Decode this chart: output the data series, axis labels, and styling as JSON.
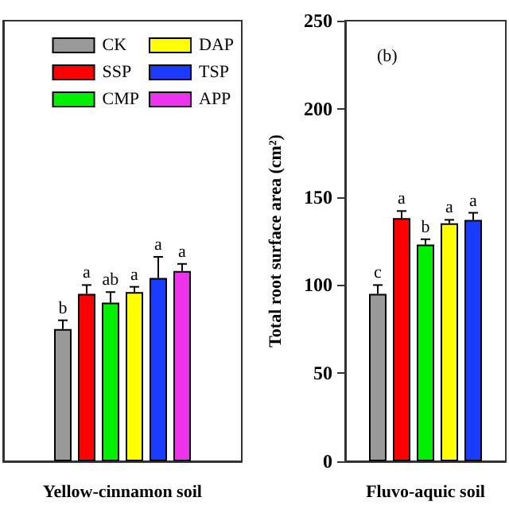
{
  "chart_data": [
    {
      "type": "bar",
      "xlabel": "Yellow-cinnamon soil",
      "categories": [
        null
      ],
      "ylim": [
        0,
        250
      ],
      "tick_labels": false,
      "legend": "top right",
      "grid": false,
      "series": [
        {
          "name": "CK",
          "color": "#999999",
          "values": [
            75
          ],
          "errors": [
            5
          ],
          "value_labels": [
            "b"
          ]
        },
        {
          "name": "SSP",
          "color": "#ff0000",
          "values": [
            95
          ],
          "errors": [
            5
          ],
          "value_labels": [
            "a"
          ]
        },
        {
          "name": "CMP",
          "color": "#00ee00",
          "values": [
            90
          ],
          "errors": [
            6
          ],
          "value_labels": [
            "ab"
          ]
        },
        {
          "name": "DAP",
          "color": "#ffff00",
          "values": [
            96
          ],
          "errors": [
            3
          ],
          "value_labels": [
            "a"
          ]
        },
        {
          "name": "TSP",
          "color": "#1a3cff",
          "values": [
            104
          ],
          "errors": [
            12
          ],
          "value_labels": [
            "a"
          ]
        },
        {
          "name": "APP",
          "color": "#ee33ee",
          "values": [
            108
          ],
          "errors": [
            4
          ],
          "value_labels": [
            "a"
          ]
        }
      ]
    },
    {
      "type": "bar",
      "xlabel": "Fluvo-aquic soil",
      "ylabel": "Total root surface area (cm²)",
      "categories": [
        null
      ],
      "ylim": [
        0,
        250
      ],
      "yticks": [
        0,
        50,
        100,
        150,
        200,
        250
      ],
      "grid": false,
      "annotations": [
        "(b)"
      ],
      "series": [
        {
          "color": "#999999",
          "values": [
            95
          ],
          "errors": [
            5
          ],
          "value_labels": [
            "c"
          ]
        },
        {
          "color": "#ff0000",
          "values": [
            138
          ],
          "errors": [
            4
          ],
          "value_labels": [
            "a"
          ]
        },
        {
          "color": "#00ee00",
          "values": [
            123
          ],
          "errors": [
            3
          ],
          "value_labels": [
            "b"
          ]
        },
        {
          "color": "#ffff00",
          "values": [
            135
          ],
          "errors": [
            2
          ],
          "value_labels": [
            "a"
          ]
        },
        {
          "color": "#1a3cff",
          "values": [
            137
          ],
          "errors": [
            4
          ],
          "value_labels": [
            "a"
          ]
        }
      ]
    }
  ]
}
